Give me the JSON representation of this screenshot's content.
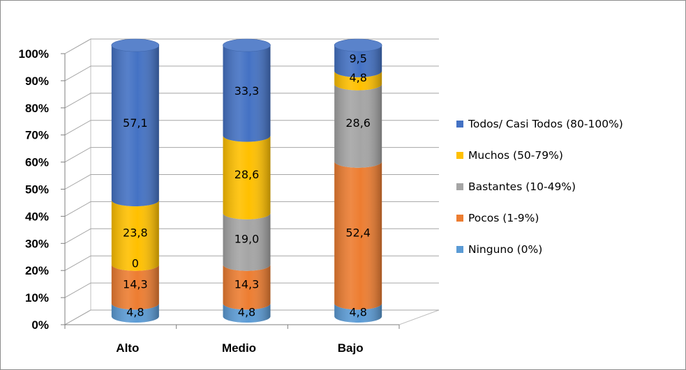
{
  "chart_data": {
    "type": "bar",
    "stacked": true,
    "percent_stacked": true,
    "three_d": true,
    "cylinder_bars": true,
    "categories": [
      "Alto",
      "Medio",
      "Bajo"
    ],
    "series": [
      {
        "name": "Ninguno (0%)",
        "color": "#5b9bd5",
        "values": [
          4.8,
          4.8,
          4.8
        ],
        "labels": [
          "4,8",
          "4,8",
          "4,8"
        ]
      },
      {
        "name": "Pocos (1-9%)",
        "color": "#ed7d31",
        "values": [
          14.3,
          14.3,
          52.4
        ],
        "labels": [
          "14,3",
          "14,3",
          "52,4"
        ]
      },
      {
        "name": "Bastantes (10-49%)",
        "color": "#a5a5a5",
        "values": [
          0,
          19.0,
          28.6
        ],
        "labels": [
          "0",
          "19,0",
          "28,6"
        ]
      },
      {
        "name": "Muchos (50-79%)",
        "color": "#ffc000",
        "values": [
          23.8,
          28.6,
          4.8
        ],
        "labels": [
          "23,8",
          "28,6",
          "4,8"
        ]
      },
      {
        "name": "Todos/ Casi Todos (80-100%)",
        "color": "#4472c4",
        "values": [
          57.1,
          33.3,
          9.5
        ],
        "labels": [
          "57,1",
          "33,3",
          "9,5"
        ]
      }
    ],
    "y_ticks": [
      "0%",
      "10%",
      "20%",
      "30%",
      "40%",
      "50%",
      "60%",
      "70%",
      "80%",
      "90%",
      "100%"
    ],
    "ylim": [
      0,
      100
    ],
    "grid": true,
    "legend_position": "right",
    "legend_order": [
      "Todos/ Casi Todos (80-100%)",
      "Muchos (50-79%)",
      "Bastantes (10-49%)",
      "Pocos (1-9%)",
      "Ninguno (0%)"
    ],
    "title": "",
    "xlabel": "",
    "ylabel": ""
  }
}
